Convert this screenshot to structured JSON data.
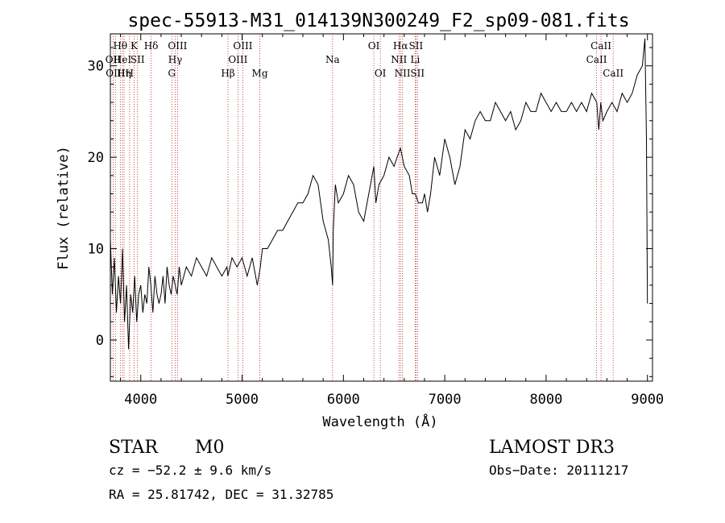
{
  "chart_data": {
    "type": "line",
    "title": "spec-55913-M31_014139N300249_F2_sp09-081.fits",
    "xlabel": "Wavelength (Å)",
    "ylabel": "Flux (relative)",
    "xlim": [
      3700,
      9050
    ],
    "ylim": [
      -4.5,
      33.5
    ],
    "xticks": [
      4000,
      5000,
      6000,
      7000,
      8000,
      9000
    ],
    "yticks": [
      0,
      10,
      20,
      30
    ],
    "series": [
      {
        "name": "flux",
        "x": [
          3700,
          3720,
          3740,
          3760,
          3780,
          3800,
          3820,
          3840,
          3860,
          3880,
          3900,
          3920,
          3940,
          3960,
          3980,
          4000,
          4020,
          4040,
          4060,
          4080,
          4100,
          4120,
          4140,
          4160,
          4180,
          4200,
          4220,
          4240,
          4260,
          4280,
          4300,
          4320,
          4340,
          4360,
          4380,
          4400,
          4450,
          4500,
          4550,
          4600,
          4650,
          4700,
          4750,
          4800,
          4850,
          4860,
          4900,
          4950,
          5000,
          5050,
          5100,
          5150,
          5180,
          5200,
          5250,
          5300,
          5350,
          5400,
          5450,
          5500,
          5550,
          5600,
          5650,
          5700,
          5750,
          5800,
          5850,
          5880,
          5893,
          5900,
          5920,
          5950,
          6000,
          6050,
          6100,
          6150,
          6200,
          6250,
          6300,
          6320,
          6350,
          6400,
          6450,
          6500,
          6530,
          6563,
          6600,
          6650,
          6680,
          6710,
          6740,
          6780,
          6800,
          6830,
          6860,
          6900,
          6950,
          7000,
          7050,
          7100,
          7150,
          7200,
          7250,
          7300,
          7350,
          7400,
          7450,
          7500,
          7550,
          7600,
          7650,
          7700,
          7750,
          7800,
          7850,
          7900,
          7950,
          8000,
          8050,
          8100,
          8150,
          8200,
          8250,
          8300,
          8350,
          8400,
          8450,
          8500,
          8520,
          8540,
          8560,
          8600,
          8650,
          8700,
          8750,
          8800,
          8850,
          8900,
          8950,
          8975,
          8990,
          9000
        ],
        "values": [
          11,
          5,
          9,
          3,
          7,
          4,
          10,
          2,
          6,
          -1,
          5,
          3,
          7,
          2,
          5,
          6,
          3,
          5,
          4,
          8,
          6,
          3,
          7,
          5,
          4,
          5,
          7,
          4,
          8,
          6,
          5,
          7,
          6,
          5,
          8,
          6,
          8,
          7,
          9,
          8,
          7,
          9,
          8,
          7,
          8,
          7,
          9,
          8,
          9,
          7,
          9,
          6,
          8,
          10,
          10,
          11,
          12,
          12,
          13,
          14,
          15,
          15,
          16,
          18,
          17,
          13,
          11,
          8,
          6,
          12,
          17,
          15,
          16,
          18,
          17,
          14,
          13,
          16,
          19,
          15,
          17,
          18,
          20,
          19,
          20,
          21,
          19,
          18,
          16,
          16,
          15,
          15,
          16,
          14,
          16,
          20,
          18,
          22,
          20,
          17,
          19,
          23,
          22,
          24,
          25,
          24,
          24,
          26,
          25,
          24,
          25,
          23,
          24,
          26,
          25,
          25,
          27,
          26,
          25,
          26,
          25,
          25,
          26,
          25,
          26,
          25,
          27,
          26,
          23,
          26,
          24,
          25,
          26,
          25,
          27,
          26,
          27,
          29,
          30,
          33,
          22,
          4
        ]
      }
    ],
    "lines": [
      {
        "wl": 3727,
        "labels": [
          "OII"
        ],
        "row": 2
      },
      {
        "wl": 3750,
        "labels": [
          "OIII"
        ],
        "row": 3
      },
      {
        "wl": 3798,
        "labels": [
          "Hθ"
        ],
        "row": 1
      },
      {
        "wl": 3820,
        "labels": [
          "HeI"
        ],
        "row": 2
      },
      {
        "wl": 3835,
        "labels": [
          "Hη"
        ],
        "row": 3
      },
      {
        "wl": 3889,
        "labels": [
          "H"
        ],
        "row": 3
      },
      {
        "wl": 3934,
        "labels": [
          "K"
        ],
        "row": 1
      },
      {
        "wl": 3968,
        "labels": [
          "SII"
        ],
        "row": 2
      },
      {
        "wl": 4102,
        "labels": [
          "Hδ"
        ],
        "row": 1
      },
      {
        "wl": 4307,
        "labels": [
          "G"
        ],
        "row": 3
      },
      {
        "wl": 4340,
        "labels": [
          "Hγ"
        ],
        "row": 2
      },
      {
        "wl": 4363,
        "labels": [
          "OIII"
        ],
        "row": 1
      },
      {
        "wl": 4861,
        "labels": [
          "Hβ"
        ],
        "row": 3
      },
      {
        "wl": 4959,
        "labels": [
          "OIII"
        ],
        "row": 2
      },
      {
        "wl": 5007,
        "labels": [
          "OIII"
        ],
        "row": 1
      },
      {
        "wl": 5175,
        "labels": [
          "Mg"
        ],
        "row": 3
      },
      {
        "wl": 5893,
        "labels": [
          "Na"
        ],
        "row": 2
      },
      {
        "wl": 6300,
        "labels": [
          "OI"
        ],
        "row": 1
      },
      {
        "wl": 6364,
        "labels": [
          "OI"
        ],
        "row": 3
      },
      {
        "wl": 6548,
        "labels": [
          "NII"
        ],
        "row": 2
      },
      {
        "wl": 6563,
        "labels": [
          "Hα"
        ],
        "row": 1
      },
      {
        "wl": 6583,
        "labels": [
          "NII"
        ],
        "row": 3
      },
      {
        "wl": 6708,
        "labels": [
          "Li"
        ],
        "row": 2
      },
      {
        "wl": 6716,
        "labels": [
          "SII"
        ],
        "row": 1
      },
      {
        "wl": 6731,
        "labels": [
          "SII"
        ],
        "row": 3
      },
      {
        "wl": 8498,
        "labels": [
          "CaII"
        ],
        "row": 2
      },
      {
        "wl": 8542,
        "labels": [
          "CaII"
        ],
        "row": 1
      },
      {
        "wl": 8662,
        "labels": [
          "CaII"
        ],
        "row": 3
      }
    ]
  },
  "info": {
    "object_class": "STAR",
    "subclass": "M0",
    "survey": "LAMOST DR3",
    "cz": "cz = −52.2 ± 9.6 km/s",
    "obs_date": "Obs−Date: 20111217",
    "coords": "RA =  25.81742, DEC =  31.32785"
  }
}
